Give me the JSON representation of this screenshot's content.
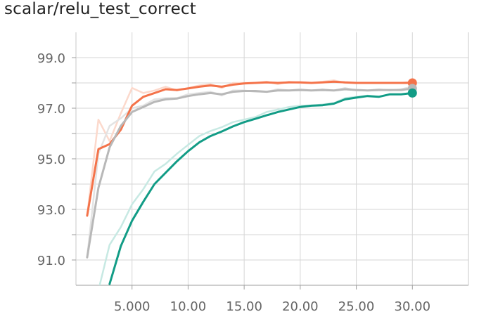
{
  "title": "scalar/relu_test_correct",
  "chart_data": {
    "type": "line",
    "title": "scalar/relu_test_correct",
    "xlabel": "",
    "ylabel": "",
    "xlim": [
      0,
      35
    ],
    "ylim": [
      90.0,
      100.0
    ],
    "grid": true,
    "x_ticks": [
      5,
      10,
      15,
      20,
      25,
      30
    ],
    "x_tick_labels": [
      "5.000",
      "10.00",
      "15.00",
      "20.00",
      "25.00",
      "30.00"
    ],
    "y_ticks": [
      91,
      92,
      93,
      94,
      95,
      96,
      97,
      98,
      99
    ],
    "y_tick_labels": [
      "91.0",
      "93.0",
      "95.0",
      "97.0",
      "99.0"
    ],
    "y_labeled_ticks": [
      91,
      93,
      95,
      97,
      99
    ],
    "series": [
      {
        "color": "#f4734a",
        "raw_color": "#fcd9cc",
        "x": [
          1,
          2,
          3,
          4,
          5,
          6,
          7,
          8,
          9,
          10,
          11,
          12,
          13,
          14,
          15,
          16,
          17,
          18,
          19,
          20,
          21,
          22,
          23,
          24,
          25,
          26,
          27,
          28,
          29,
          30
        ],
        "values": [
          92.75,
          95.38,
          95.58,
          96.15,
          97.1,
          97.45,
          97.6,
          97.75,
          97.72,
          97.78,
          97.85,
          97.9,
          97.85,
          97.93,
          97.98,
          98.0,
          98.02,
          98.0,
          98.02,
          98.02,
          98.0,
          98.02,
          98.05,
          98.02,
          98.0,
          98.0,
          98.0,
          98.0,
          98.0,
          98.0
        ],
        "raw_values": [
          92.75,
          96.55,
          95.7,
          96.8,
          97.8,
          97.6,
          97.7,
          97.85,
          97.7,
          97.8,
          97.9,
          97.95,
          97.8,
          98.0,
          98.0,
          98.0,
          98.05,
          97.95,
          98.05,
          98.0,
          98.0,
          98.05,
          98.1,
          98.0,
          98.0,
          98.0,
          98.0,
          98.0,
          98.0,
          98.05
        ]
      },
      {
        "color": "#b8b8b8",
        "raw_color": "#e3e3e3",
        "x": [
          1,
          2,
          3,
          4,
          5,
          6,
          7,
          8,
          9,
          10,
          11,
          12,
          13,
          14,
          15,
          16,
          17,
          18,
          19,
          20,
          21,
          22,
          23,
          24,
          25,
          26,
          27,
          28,
          29,
          30
        ],
        "values": [
          91.1,
          93.85,
          95.45,
          96.3,
          96.85,
          97.05,
          97.25,
          97.35,
          97.38,
          97.48,
          97.55,
          97.6,
          97.55,
          97.65,
          97.68,
          97.68,
          97.65,
          97.7,
          97.7,
          97.72,
          97.7,
          97.72,
          97.7,
          97.75,
          97.72,
          97.7,
          97.72,
          97.72,
          97.72,
          97.78
        ],
        "raw_values": [
          91.1,
          95.2,
          96.3,
          96.6,
          97.0,
          97.1,
          97.35,
          97.4,
          97.4,
          97.55,
          97.6,
          97.65,
          97.5,
          97.7,
          97.7,
          97.65,
          97.65,
          97.75,
          97.7,
          97.75,
          97.7,
          97.75,
          97.7,
          97.8,
          97.7,
          97.7,
          97.75,
          97.7,
          97.75,
          97.85
        ]
      },
      {
        "color": "#129c86",
        "raw_color": "#c7e9e3",
        "x": [
          3,
          4,
          5,
          6,
          7,
          8,
          9,
          10,
          11,
          12,
          13,
          14,
          15,
          16,
          17,
          18,
          19,
          20,
          21,
          22,
          23,
          24,
          25,
          26,
          27,
          28,
          29,
          30
        ],
        "values": [
          90.05,
          91.55,
          92.55,
          93.3,
          94.0,
          94.45,
          94.9,
          95.3,
          95.65,
          95.9,
          96.08,
          96.28,
          96.45,
          96.58,
          96.72,
          96.85,
          96.95,
          97.05,
          97.1,
          97.12,
          97.18,
          97.35,
          97.42,
          97.48,
          97.45,
          97.55,
          97.55,
          97.6
        ],
        "raw_values": [
          91.6,
          92.3,
          93.2,
          93.8,
          94.5,
          94.8,
          95.2,
          95.55,
          95.9,
          96.1,
          96.25,
          96.45,
          96.55,
          96.65,
          96.85,
          96.95,
          97.05,
          97.1,
          97.1,
          97.15,
          97.2,
          97.4,
          97.45,
          97.5,
          97.45,
          97.55,
          97.55,
          97.6
        ],
        "raw_lead_x": [
          2,
          3
        ],
        "raw_lead_values": [
          89.8,
          91.6
        ]
      }
    ]
  }
}
